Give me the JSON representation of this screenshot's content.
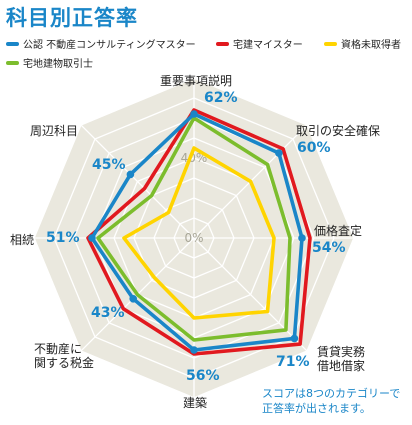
{
  "title": "科目別正答率",
  "legend": [
    {
      "label": "公認 不動産コンサルティングマスター",
      "color": "#1a86c8"
    },
    {
      "label": "宅建マイスター",
      "color": "#e1191f"
    },
    {
      "label": "資格未取得者",
      "color": "#ffd400"
    },
    {
      "label": "宅地建物取引士",
      "color": "#7cbd2d"
    }
  ],
  "note": "スコアは8つのカテゴリーで\n正答率が出されます。",
  "chart_data": {
    "type": "radar",
    "categories": [
      "重要事項説明",
      "取引の安全確保",
      "価格査定",
      "賃貸実務 借地借家",
      "建築",
      "不動産に 関する税金",
      "相続",
      "周辺科目"
    ],
    "category_percent_labels": [
      "62%",
      "60%",
      "54%",
      "71%",
      "56%",
      "43%",
      "51%",
      "45%"
    ],
    "axis_labels": [
      "0%",
      "40%"
    ],
    "rlim": [
      0,
      80
    ],
    "series": [
      {
        "name": "公認 不動産コンサルティングマスター",
        "color": "#1a86c8",
        "values": [
          62,
          60,
          54,
          71,
          56,
          43,
          51,
          45
        ]
      },
      {
        "name": "宅建マイスター",
        "color": "#e1191f",
        "values": [
          64,
          63,
          58,
          75,
          58,
          50,
          53,
          35
        ]
      },
      {
        "name": "宅地建物取引士",
        "color": "#7cbd2d",
        "values": [
          60,
          52,
          48,
          65,
          51,
          40,
          48,
          30
        ]
      },
      {
        "name": "資格未取得者",
        "color": "#ffd400",
        "values": [
          45,
          40,
          40,
          52,
          40,
          28,
          35,
          18
        ]
      }
    ]
  }
}
